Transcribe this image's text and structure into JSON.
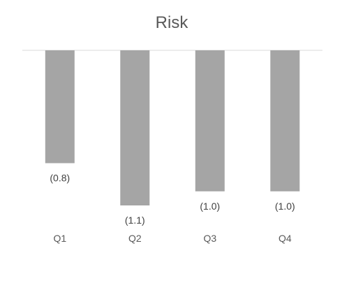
{
  "chart_data": {
    "type": "bar",
    "title": "Risk",
    "categories": [
      "Q1",
      "Q2",
      "Q3",
      "Q4"
    ],
    "values": [
      -0.8,
      -1.1,
      -1.0,
      -1.0
    ],
    "data_labels": [
      "(0.8)",
      "(1.1)",
      "(1.0)",
      "(1.0)"
    ],
    "xlabel": "",
    "ylabel": "",
    "ylim": [
      -1.1,
      0
    ],
    "grid": false,
    "legend": "none",
    "bar_color": "#a5a5a5",
    "axis_color": "#d9d9d9"
  }
}
